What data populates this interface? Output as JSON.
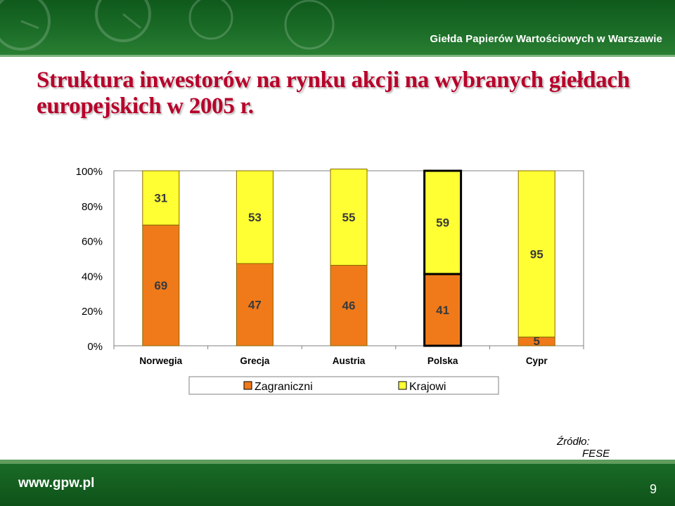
{
  "header": {
    "org": "Giełda Papierów Wartościowych w Warszawie"
  },
  "slide": {
    "title": "Struktura inwestorów na rynku akcji na wybranych giełdach europejskich w 2005 r."
  },
  "chart_data": {
    "type": "bar",
    "stacked": true,
    "percent": true,
    "categories": [
      "Norwegia",
      "Grecja",
      "Austria",
      "Polska",
      "Cypr"
    ],
    "series": [
      {
        "name": "Zagraniczni",
        "values": [
          69,
          47,
          46,
          41,
          5
        ],
        "color": "#f07a1a"
      },
      {
        "name": "Krajowi",
        "values": [
          31,
          53,
          55,
          59,
          95
        ],
        "color": "#ffff33"
      }
    ],
    "y_ticks": [
      "0%",
      "20%",
      "40%",
      "60%",
      "80%",
      "100%"
    ],
    "ylim": [
      0,
      100
    ],
    "highlight_category": "Polska",
    "legend_position": "bottom",
    "grid": false
  },
  "source": {
    "label": "Źródło:",
    "name": "FESE"
  },
  "footer": {
    "url": "www.gpw.pl",
    "page": "9"
  }
}
